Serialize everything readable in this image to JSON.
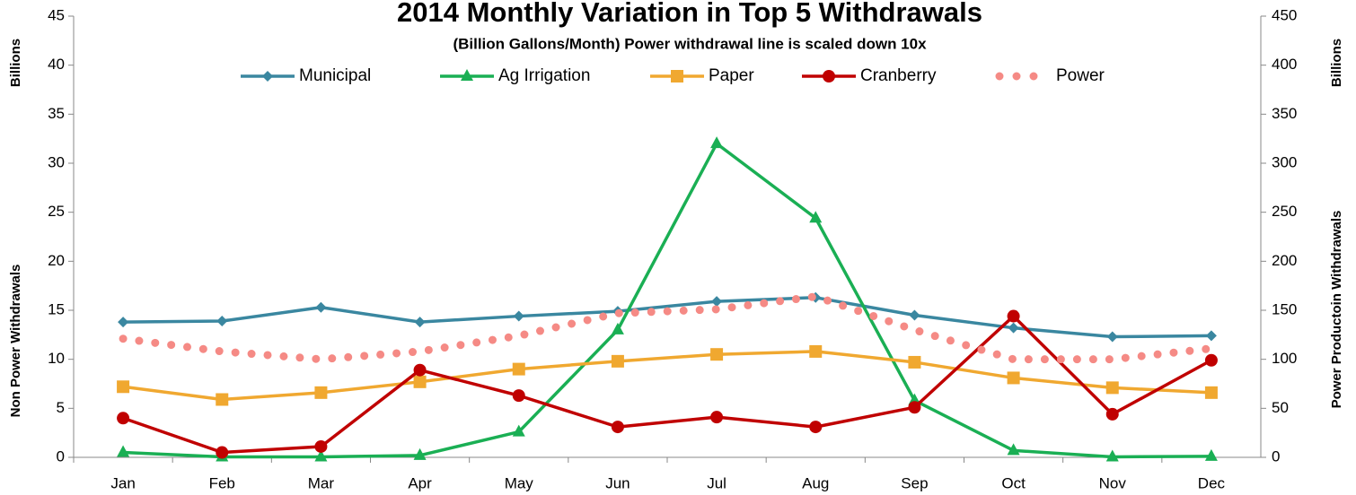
{
  "chart_data": {
    "type": "line",
    "title": "2014 Monthly Variation in Top 5 Withdrawals",
    "subtitle": "(Billion Gallons/Month) Power withdrawal line is scaled down 10x",
    "y_axis_unit": "Billions",
    "y_label": "Non Power Withdrawals",
    "y2_axis_unit": "Billions",
    "y2_label": "Power Productoin Withdrawals",
    "categories": [
      "Jan",
      "Feb",
      "Mar",
      "Apr",
      "May",
      "Jun",
      "Jul",
      "Aug",
      "Sep",
      "Oct",
      "Nov",
      "Dec"
    ],
    "series": [
      {
        "name": "Municipal",
        "color": "#3a87a0",
        "marker": "diamond",
        "values": [
          13.8,
          13.9,
          15.3,
          13.8,
          14.4,
          14.9,
          15.9,
          16.3,
          14.5,
          13.2,
          12.3,
          12.4
        ]
      },
      {
        "name": "Ag Irrigation",
        "color": "#1aaf54",
        "marker": "triangle",
        "values": [
          0.5,
          0.05,
          0.05,
          0.2,
          2.6,
          13.0,
          32.0,
          24.4,
          5.8,
          0.7,
          0.05,
          0.1
        ]
      },
      {
        "name": "Paper",
        "color": "#f0a830",
        "marker": "square",
        "values": [
          7.2,
          5.9,
          6.6,
          7.7,
          9.0,
          9.8,
          10.5,
          10.8,
          9.7,
          8.1,
          7.1,
          6.6
        ]
      },
      {
        "name": "Cranberry",
        "color": "#c00000",
        "marker": "circle",
        "values": [
          4.0,
          0.5,
          1.1,
          8.9,
          6.3,
          3.1,
          4.1,
          3.1,
          5.1,
          14.4,
          4.4,
          9.9
        ]
      },
      {
        "name": "Power",
        "color": "#f58a85",
        "style": "dotted",
        "axis": "y2",
        "values": [
          121,
          108,
          100,
          108,
          124,
          147,
          151,
          164,
          130,
          100,
          100,
          111
        ]
      }
    ],
    "ylim": [
      0,
      45
    ],
    "yticks": [
      0,
      5,
      10,
      15,
      20,
      25,
      30,
      35,
      40,
      45
    ],
    "y2lim": [
      0,
      450
    ],
    "y2ticks": [
      0,
      50,
      100,
      150,
      200,
      250,
      300,
      350,
      400,
      450
    ],
    "legend": "top",
    "grid": false
  }
}
